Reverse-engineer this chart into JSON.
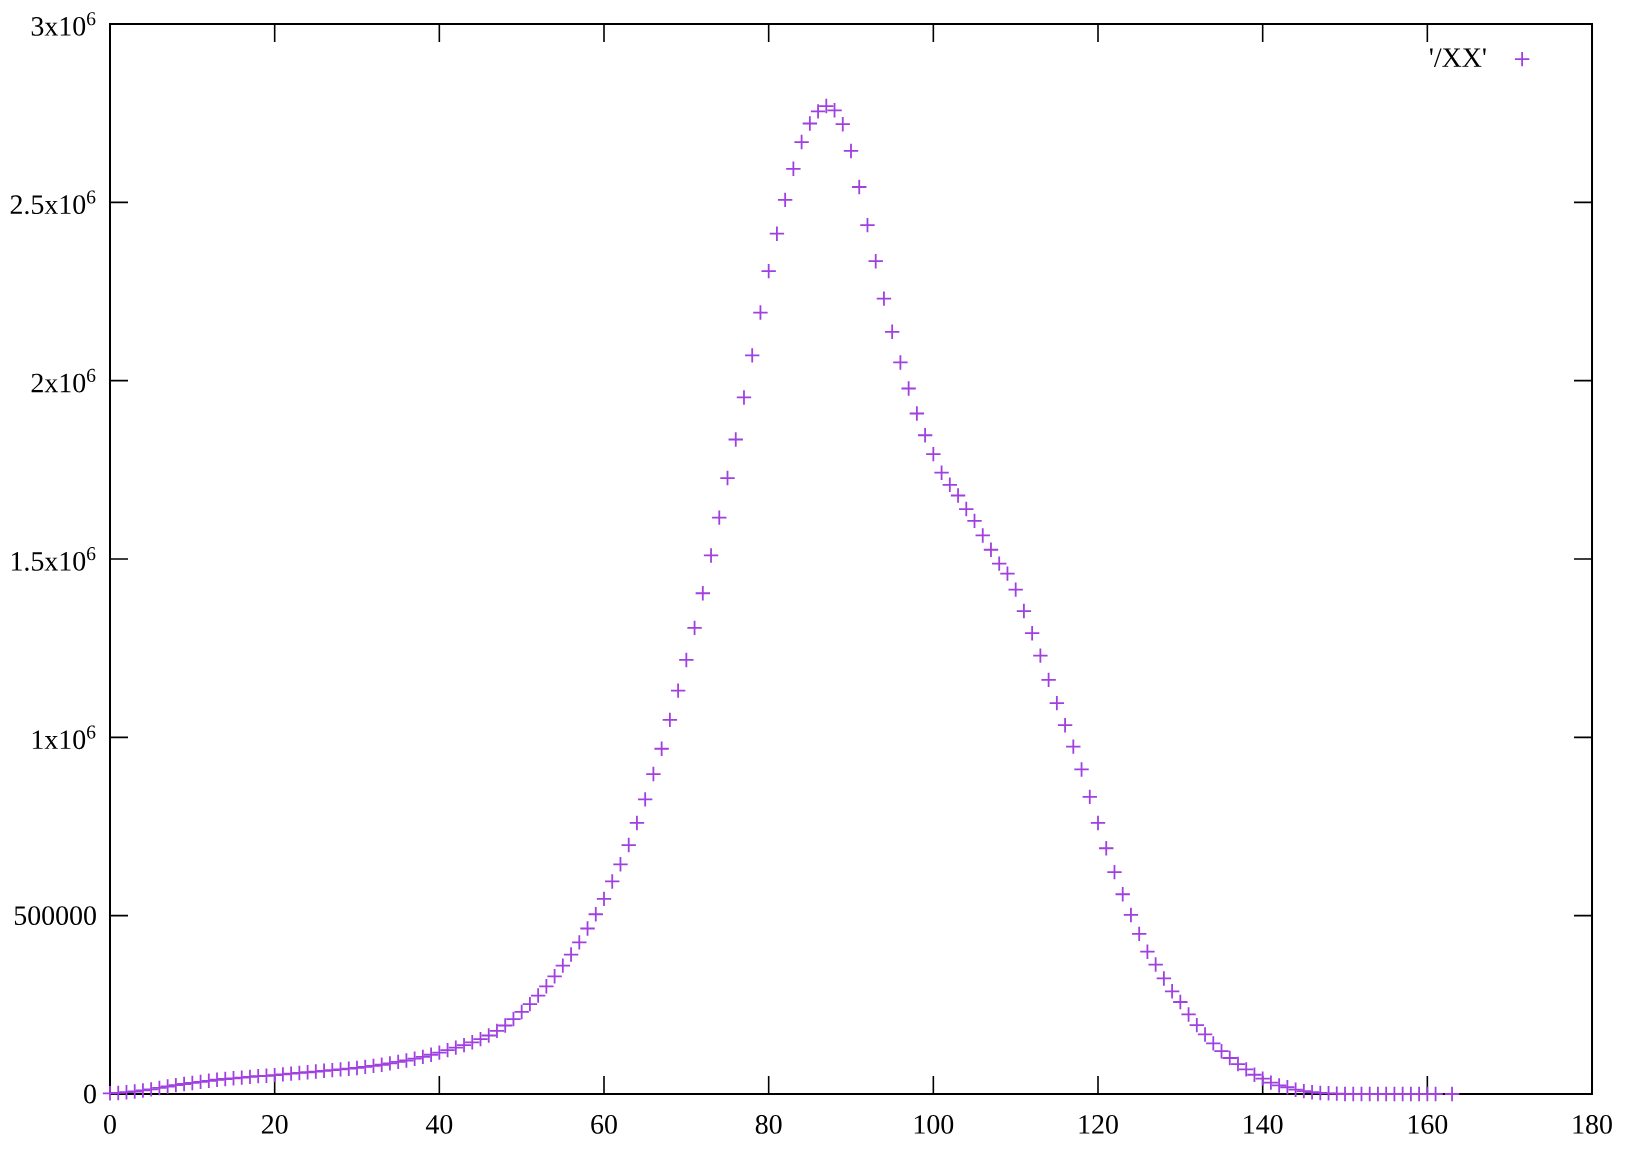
{
  "chart_data": {
    "type": "scatter",
    "x": [
      0,
      1,
      2,
      3,
      4,
      5,
      6,
      7,
      8,
      9,
      10,
      11,
      12,
      13,
      14,
      15,
      16,
      17,
      18,
      19,
      20,
      21,
      22,
      23,
      24,
      25,
      26,
      27,
      28,
      29,
      30,
      31,
      32,
      33,
      34,
      35,
      36,
      37,
      38,
      39,
      40,
      41,
      42,
      43,
      44,
      45,
      46,
      47,
      48,
      49,
      50,
      51,
      52,
      53,
      54,
      55,
      56,
      57,
      58,
      59,
      60,
      61,
      62,
      63,
      64,
      65,
      66,
      67,
      68,
      69,
      70,
      71,
      72,
      73,
      74,
      75,
      76,
      77,
      78,
      79,
      80,
      81,
      82,
      83,
      84,
      85,
      86,
      87,
      88,
      89,
      90,
      91,
      92,
      93,
      94,
      95,
      96,
      97,
      98,
      99,
      100,
      101,
      102,
      103,
      104,
      105,
      106,
      107,
      108,
      109,
      110,
      111,
      112,
      113,
      114,
      115,
      116,
      117,
      118,
      119,
      120,
      121,
      122,
      123,
      124,
      125,
      126,
      127,
      128,
      129,
      130,
      131,
      132,
      133,
      134,
      135,
      136,
      137,
      138,
      139,
      140,
      141,
      142,
      143,
      144,
      145,
      146,
      147,
      148,
      149,
      150,
      151,
      152,
      153,
      154,
      155,
      156,
      157,
      158,
      159,
      160,
      161,
      163
    ],
    "series": [
      {
        "name": "'/XX'",
        "color": "#a040e0",
        "values": [
          2000,
          3000,
          5000,
          7000,
          10000,
          13000,
          17000,
          21000,
          25000,
          28000,
          31000,
          34000,
          37000,
          40000,
          42000,
          44000,
          46000,
          48000,
          50000,
          51000,
          53000,
          55000,
          57000,
          59000,
          61000,
          63000,
          65000,
          67000,
          69000,
          71000,
          73000,
          76000,
          79000,
          82000,
          86000,
          90000,
          94000,
          99000,
          104000,
          110000,
          116000,
          123000,
          130000,
          137000,
          145000,
          154000,
          164000,
          177000,
          192000,
          210000,
          230000,
          252000,
          276000,
          302000,
          330000,
          360000,
          391000,
          425000,
          464000,
          504000,
          547000,
          596000,
          644000,
          698000,
          760000,
          826000,
          897000,
          968000,
          1049000,
          1131000,
          1217000,
          1307000,
          1404000,
          1510000,
          1616000,
          1727000,
          1835000,
          1953000,
          2071000,
          2191000,
          2307000,
          2412000,
          2507000,
          2594000,
          2669000,
          2721000,
          2755000,
          2770000,
          2758000,
          2719000,
          2644000,
          2543000,
          2436000,
          2335000,
          2230000,
          2137000,
          2051000,
          1978000,
          1908000,
          1847000,
          1794000,
          1742000,
          1708000,
          1678000,
          1640000,
          1607000,
          1566000,
          1526000,
          1487000,
          1459000,
          1414000,
          1354000,
          1292000,
          1229000,
          1161000,
          1096000,
          1034000,
          974000,
          910000,
          833000,
          760000,
          689000,
          622000,
          560000,
          502000,
          449000,
          399000,
          363000,
          324000,
          288000,
          258000,
          223000,
          193000,
          167000,
          142000,
          120000,
          101000,
          84000,
          69000,
          54000,
          43000,
          32000,
          24000,
          19000,
          12000,
          8000,
          5000,
          3000,
          2000,
          1000,
          0,
          0,
          0,
          0,
          0,
          0,
          0,
          0,
          0,
          0,
          0,
          0,
          0
        ]
      }
    ],
    "xlim": [
      0,
      180
    ],
    "ylim": [
      0,
      3000000
    ],
    "xticks": [
      0,
      20,
      40,
      60,
      80,
      100,
      120,
      140,
      160,
      180
    ],
    "yticks": [
      0,
      500000,
      {
        "value": 1000000,
        "label": "1x10$^{6}$"
      },
      {
        "value": 1500000,
        "label": "1.5x10$^{6}$"
      },
      {
        "value": 2000000,
        "label": "2x10$^{6}$"
      },
      {
        "value": 2500000,
        "label": "2.5x10$^{6}$"
      },
      {
        "value": 3000000,
        "label": "3x10$^{6}$"
      }
    ],
    "marker": "cross",
    "legend": "top right"
  }
}
